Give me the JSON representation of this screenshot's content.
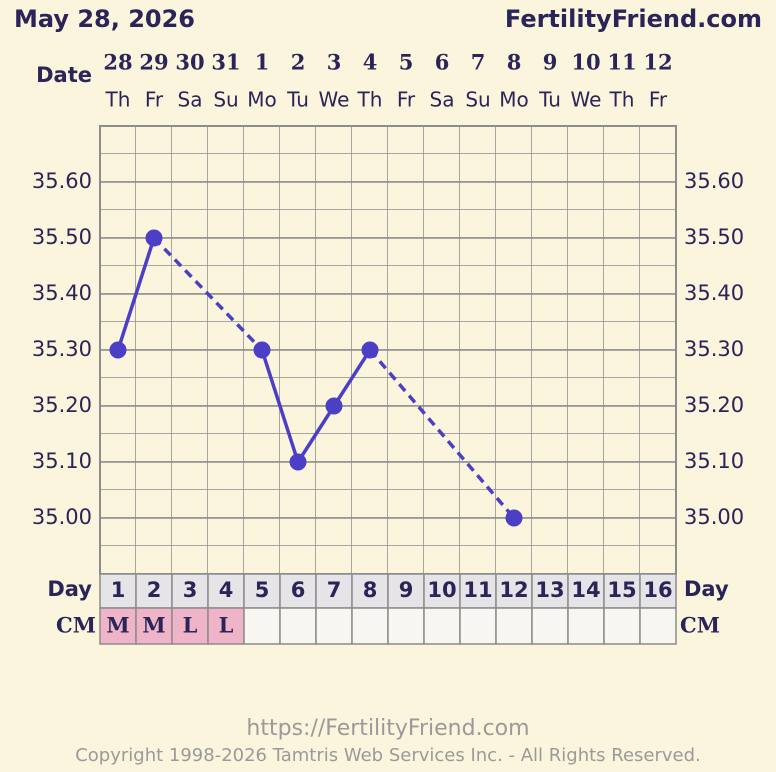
{
  "chart_data": {
    "type": "line",
    "title": "May 28, 2026",
    "site": "FertilityFriend.com",
    "date_label": "Date",
    "day_label": "Day",
    "cm_label": "CM",
    "dates": [
      28,
      29,
      30,
      31,
      1,
      2,
      3,
      4,
      5,
      6,
      7,
      8,
      9,
      10,
      11,
      12
    ],
    "weekdays": [
      "Th",
      "Fr",
      "Sa",
      "Su",
      "Mo",
      "Tu",
      "We",
      "Th",
      "Fr",
      "Sa",
      "Su",
      "Mo",
      "Tu",
      "We",
      "Th",
      "Fr"
    ],
    "x": [
      1,
      2,
      3,
      4,
      5,
      6,
      7,
      8,
      9,
      10,
      11,
      12,
      13,
      14,
      15,
      16
    ],
    "xlim": [
      0.5,
      16.5
    ],
    "series": [
      {
        "color": "#4b3fc6",
        "values": [
          35.3,
          35.5,
          null,
          null,
          35.3,
          35.1,
          35.2,
          35.3,
          null,
          null,
          null,
          35.0,
          null,
          null,
          null,
          null
        ]
      }
    ],
    "cm": [
      "M",
      "M",
      "L",
      "L",
      null,
      null,
      null,
      null,
      null,
      null,
      null,
      null,
      null,
      null,
      null,
      null
    ],
    "cm_color": "#f0b4c8",
    "ylim": [
      34.9,
      35.7
    ],
    "yticks": [
      {
        "value": 35.0,
        "label": "35.00"
      },
      {
        "value": 35.1,
        "label": "35.10"
      },
      {
        "value": 35.2,
        "label": "35.20"
      },
      {
        "value": 35.3,
        "label": "35.30"
      },
      {
        "value": 35.4,
        "label": "35.40"
      },
      {
        "value": 35.5,
        "label": "35.50"
      },
      {
        "value": 35.6,
        "label": "35.60"
      }
    ],
    "grid": true,
    "url": "https://FertilityFriend.com",
    "copyright": "Copyright 1998-2026 Tamtris Web Services Inc. - All Rights Reserved."
  }
}
